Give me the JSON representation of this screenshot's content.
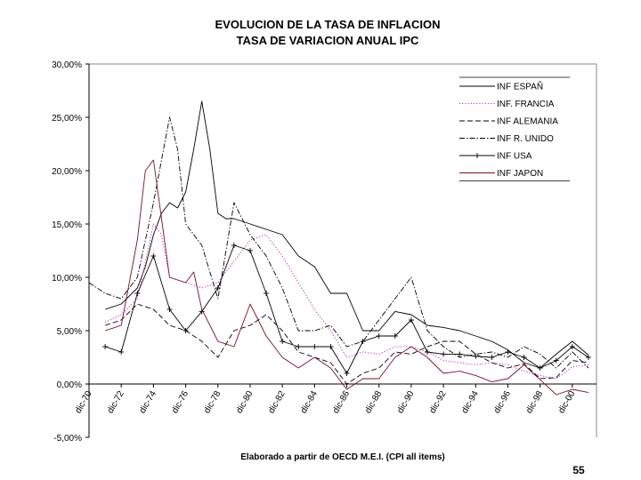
{
  "chart_data": {
    "type": "line",
    "title": "EVOLUCION DE LA TASA DE INFLACION",
    "subtitle": "TASA DE VARIACION ANUAL IPC",
    "ylim": [
      -5,
      30
    ],
    "yticks": [
      -5,
      0,
      5,
      10,
      15,
      20,
      25,
      30
    ],
    "ytick_labels": [
      "-5,00%",
      "0,00%",
      "5,00%",
      "10,00%",
      "15,00%",
      "20,00%",
      "25,00%",
      "30,00%"
    ],
    "xlim": [
      1970,
      2001.5
    ],
    "xticks": [
      1970,
      1972,
      1974,
      1976,
      1978,
      1980,
      1982,
      1984,
      1986,
      1988,
      1990,
      1992,
      1994,
      1996,
      1998,
      2000
    ],
    "xtick_labels": [
      "dic-70",
      "dic-72",
      "dic-74",
      "dic-76",
      "dic-78",
      "dic-80",
      "dic-82",
      "dic-84",
      "dic-86",
      "dic-88",
      "dic-90",
      "dic-92",
      "dic-94",
      "dic-96",
      "dic-98",
      "dic-00"
    ],
    "legend_position": "top-right",
    "series": [
      {
        "name": "INF ESPAÑ",
        "style": "solid-thin",
        "x": [
          1971,
          1972,
          1973,
          1973.5,
          1974,
          1974.5,
          1975,
          1975.5,
          1976,
          1976.5,
          1977,
          1977.5,
          1978,
          1978.5,
          1979,
          1980,
          1981,
          1982,
          1983,
          1984,
          1985,
          1986,
          1987,
          1988,
          1989,
          1990,
          1991,
          1992,
          1993,
          1994,
          1995,
          1996,
          1997,
          1998,
          1999,
          2000,
          2001
        ],
        "y": [
          7,
          7.5,
          9,
          11,
          14,
          16,
          17,
          16.5,
          18,
          22,
          26.5,
          22,
          16,
          15.5,
          15.5,
          15,
          14.5,
          14,
          12,
          11,
          8.5,
          8.5,
          5,
          5,
          6.8,
          6.5,
          5.5,
          5.3,
          5,
          4.5,
          4,
          3.2,
          2,
          1.5,
          2.8,
          4,
          2.7
        ]
      },
      {
        "name": "INF. FRANCIA",
        "style": "dotted",
        "x": [
          1971,
          1972,
          1973,
          1974,
          1974.5,
          1975,
          1976,
          1977,
          1978,
          1979,
          1980,
          1981,
          1982,
          1983,
          1984,
          1985,
          1986,
          1987,
          1988,
          1989,
          1990,
          1991,
          1992,
          1993,
          1994,
          1995,
          1996,
          1997,
          1998,
          1999,
          2000,
          2001
        ],
        "y": [
          5.8,
          6.5,
          8,
          15,
          14,
          10,
          9.5,
          9,
          9.5,
          11.5,
          13.5,
          14,
          12,
          9.5,
          7,
          5,
          2.5,
          3,
          2.8,
          3.5,
          3.5,
          3,
          2.2,
          2,
          1.8,
          2,
          1.8,
          1.2,
          0.8,
          0.5,
          1.6,
          1.8
        ]
      },
      {
        "name": "INF ALEMANIA",
        "style": "dashed",
        "x": [
          1971,
          1972,
          1973,
          1974,
          1975,
          1976,
          1977,
          1978,
          1979,
          1980,
          1981,
          1982,
          1983,
          1984,
          1985,
          1986,
          1987,
          1988,
          1989,
          1990,
          1991,
          1992,
          1993,
          1994,
          1995,
          1996,
          1997,
          1998,
          1999,
          2000,
          2001
        ],
        "y": [
          5.5,
          6,
          7.5,
          7,
          5.5,
          5,
          4,
          2.5,
          5,
          5.5,
          6.5,
          5,
          3,
          2.5,
          2,
          0,
          1,
          1.5,
          3,
          2.8,
          3.5,
          4,
          4,
          2.8,
          2,
          1.5,
          1.9,
          0.5,
          0.6,
          2.2,
          2
        ]
      },
      {
        "name": "INF R. UNIDO",
        "style": "dash-dot",
        "x": [
          1970,
          1971,
          1972,
          1973,
          1974,
          1975,
          1975.5,
          1976,
          1977,
          1978,
          1979,
          1980,
          1981,
          1982,
          1983,
          1984,
          1985,
          1986,
          1987,
          1988,
          1989,
          1990,
          1991,
          1992,
          1993,
          1994,
          1995,
          1996,
          1997,
          1998,
          1999,
          2000,
          2001
        ],
        "y": [
          9.5,
          8.5,
          8,
          10,
          17,
          25,
          22,
          15,
          13,
          8,
          17,
          14,
          12,
          9,
          5,
          5,
          5.5,
          3.5,
          4,
          6,
          8,
          10,
          5,
          3.5,
          2.5,
          2.8,
          3,
          2.5,
          3.5,
          2.8,
          1.5,
          3,
          1.5
        ]
      },
      {
        "name": "INF USA",
        "style": "solid-plus",
        "x": [
          1971,
          1972,
          1973,
          1974,
          1975,
          1976,
          1977,
          1978,
          1979,
          1980,
          1981,
          1982,
          1983,
          1984,
          1985,
          1986,
          1987,
          1988,
          1989,
          1990,
          1991,
          1992,
          1993,
          1994,
          1995,
          1996,
          1997,
          1998,
          1999,
          2000,
          2001
        ],
        "y": [
          3.5,
          3,
          8.5,
          12,
          7,
          5,
          6.8,
          9,
          13,
          12.5,
          8.5,
          4,
          3.5,
          3.5,
          3.5,
          1,
          4,
          4.5,
          4.5,
          6,
          3,
          2.8,
          2.8,
          2.6,
          2.5,
          3,
          2.5,
          1.5,
          2.2,
          3.5,
          2.5
        ]
      },
      {
        "name": "INF JAPON",
        "style": "solid-thin-red",
        "x": [
          1971,
          1972,
          1973,
          1973.5,
          1974,
          1975,
          1976,
          1976.5,
          1977,
          1978,
          1979,
          1980,
          1981,
          1982,
          1983,
          1984,
          1985,
          1986,
          1987,
          1988,
          1989,
          1990,
          1991,
          1992,
          1993,
          1994,
          1995,
          1996,
          1997,
          1998,
          1999,
          2000,
          2001
        ],
        "y": [
          5,
          5.5,
          13.5,
          20,
          21,
          10,
          9.5,
          10.5,
          7,
          4,
          3.5,
          7.5,
          4.5,
          2.5,
          1.5,
          2.5,
          1.5,
          -0.5,
          0.5,
          0.5,
          2.5,
          3.5,
          2.5,
          1,
          1.2,
          0.8,
          0.2,
          0.5,
          1.8,
          0.4,
          -1,
          -0.5,
          -0.8
        ]
      }
    ]
  },
  "footnote": "Elaborado a partir de OECD M.E.I. (CPI all items)",
  "page_number": "55",
  "colors": {
    "axis": "#000000",
    "frame": "#888888",
    "series": [
      "#000000",
      "#cc33cc",
      "#000000",
      "#000000",
      "#000000",
      "#7a1020"
    ]
  }
}
